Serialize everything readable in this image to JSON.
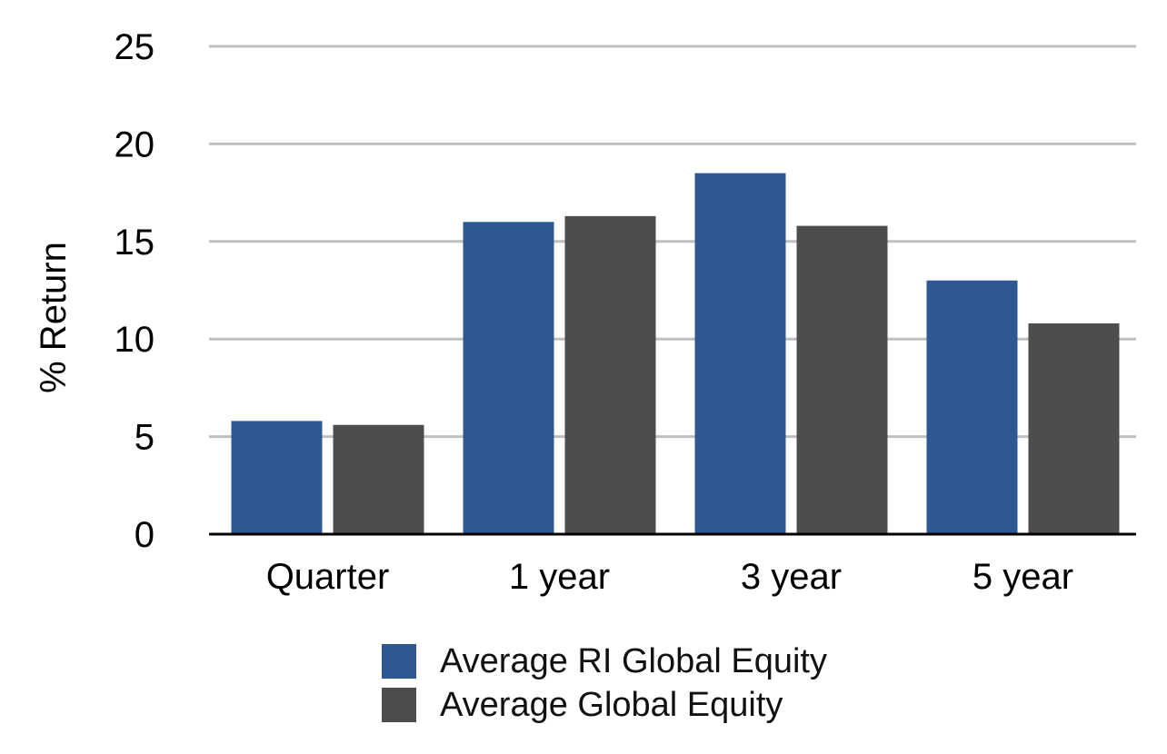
{
  "chart_data": {
    "type": "bar",
    "categories": [
      "Quarter",
      "1 year",
      "3 year",
      "5 year"
    ],
    "series": [
      {
        "name": "Average RI Global Equity",
        "values": [
          5.8,
          16.0,
          18.5,
          13.0
        ],
        "color": "#2d5892"
      },
      {
        "name": "Average Global Equity",
        "values": [
          5.6,
          16.3,
          15.8,
          10.8
        ],
        "color": "#4d4d4d"
      }
    ],
    "title": "",
    "xlabel": "",
    "ylabel": "% Return",
    "ylim": [
      0,
      25
    ],
    "yticks": [
      "0",
      "5",
      "10",
      "15",
      "20",
      "25"
    ],
    "grid": true,
    "legend_position": "bottom"
  }
}
